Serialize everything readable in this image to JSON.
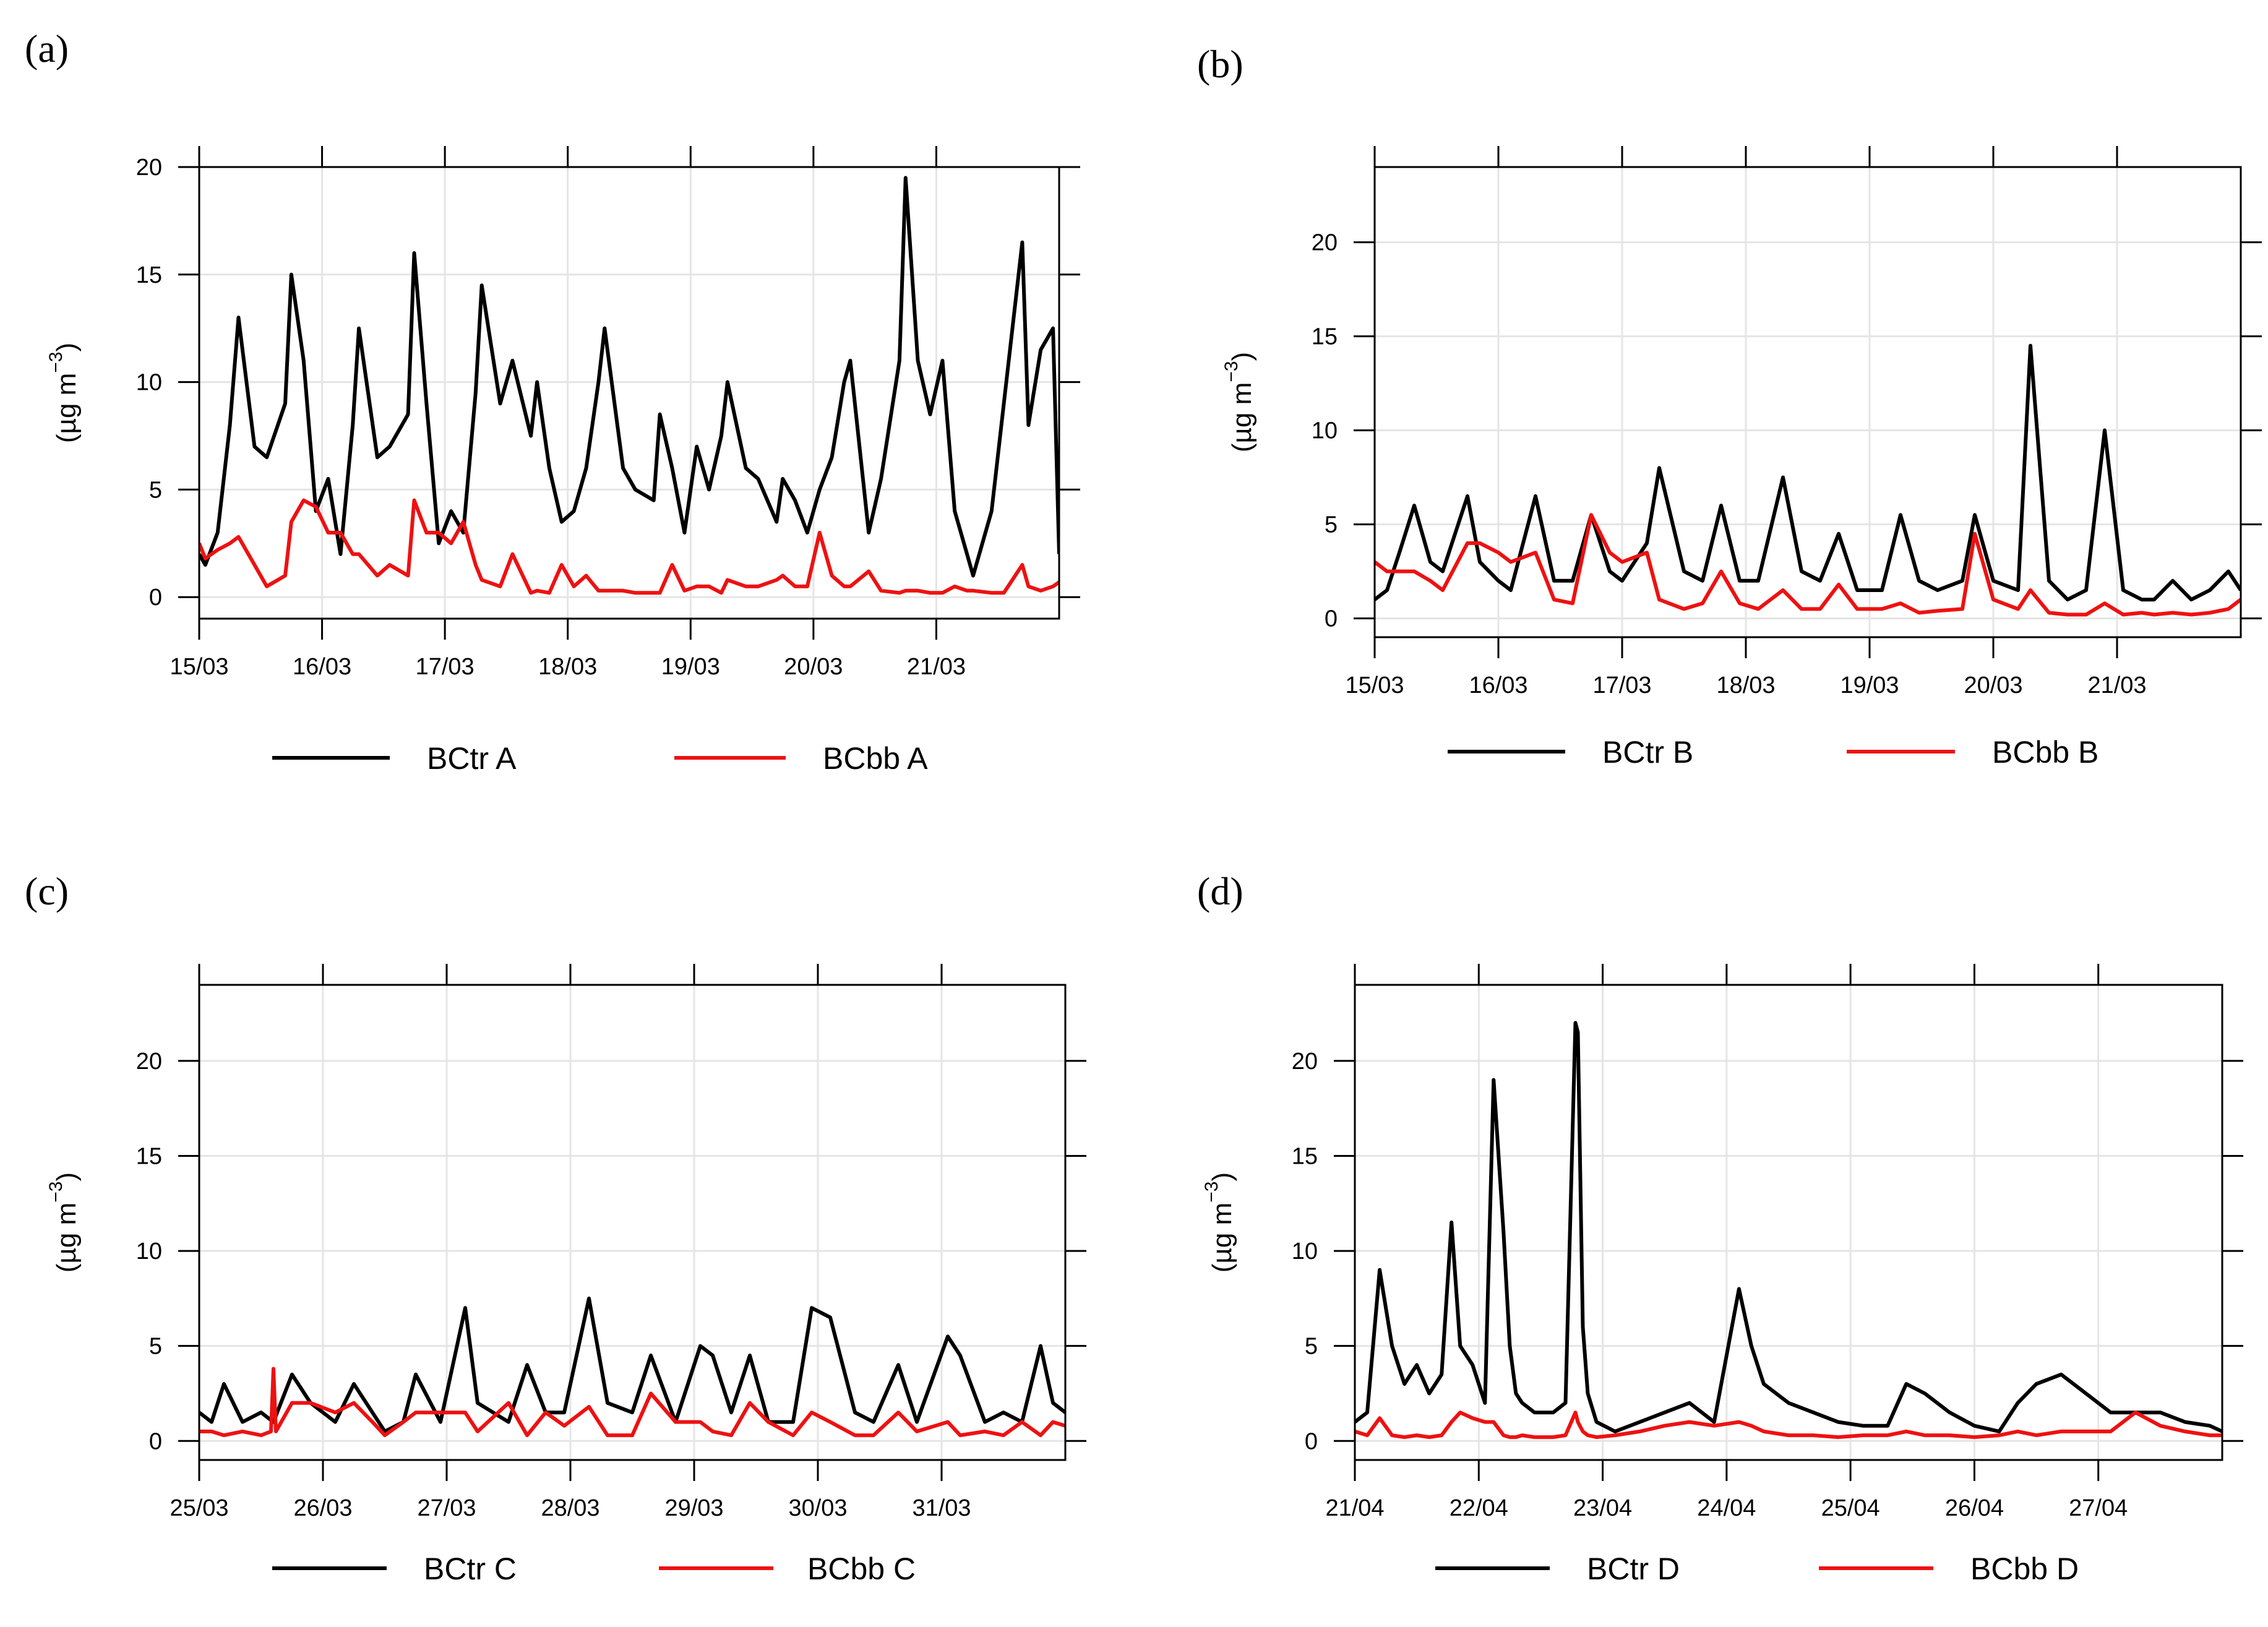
{
  "colors": {
    "bctr": "#000000",
    "bcbb": "#ee1111",
    "grid": "#e5e5e5",
    "frame": "#000000"
  },
  "chart_data": [
    {
      "panel_label": "(a)",
      "type": "line",
      "ylabel": "(µg m",
      "ylabel_sup": "−3",
      "ylabel_close": ")",
      "ylim": [
        -1,
        20
      ],
      "yticks": [
        "0",
        "5",
        "10",
        "15",
        "20"
      ],
      "xlim": [
        0,
        7
      ],
      "x_tick_labels": [
        "15/03",
        "16/03",
        "17/03",
        "18/03",
        "19/03",
        "20/03",
        "21/03"
      ],
      "series": [
        {
          "name": "BCtr A",
          "x": [
            0,
            0.05,
            0.15,
            0.25,
            0.32,
            0.45,
            0.55,
            0.7,
            0.75,
            0.85,
            0.95,
            1.05,
            1.15,
            1.25,
            1.3,
            1.45,
            1.55,
            1.7,
            1.75,
            1.85,
            1.95,
            2.05,
            2.15,
            2.25,
            2.3,
            2.45,
            2.55,
            2.7,
            2.75,
            2.85,
            2.95,
            3.05,
            3.15,
            3.25,
            3.3,
            3.45,
            3.55,
            3.7,
            3.75,
            3.85,
            3.95,
            4.05,
            4.15,
            4.25,
            4.3,
            4.45,
            4.55,
            4.7,
            4.75,
            4.85,
            4.95,
            5.05,
            5.15,
            5.25,
            5.3,
            5.45,
            5.55,
            5.7,
            5.75,
            5.85,
            5.95,
            6.05,
            6.15,
            6.25,
            6.3,
            6.45,
            6.55,
            6.7,
            6.75,
            6.85,
            6.95,
            7.0
          ],
          "values": [
            2.0,
            1.5,
            3.0,
            8.0,
            13.0,
            7.0,
            6.5,
            9.0,
            15.0,
            11.0,
            4.0,
            5.5,
            2.0,
            8.0,
            12.5,
            6.5,
            7.0,
            8.5,
            16.0,
            9.0,
            2.5,
            4.0,
            3.0,
            9.5,
            14.5,
            9.0,
            11.0,
            7.5,
            10.0,
            6.0,
            3.5,
            4.0,
            6.0,
            10.0,
            12.5,
            6.0,
            5.0,
            4.5,
            8.5,
            6.0,
            3.0,
            7.0,
            5.0,
            7.5,
            10.0,
            6.0,
            5.5,
            3.5,
            5.5,
            4.5,
            3.0,
            5.0,
            6.5,
            10.0,
            11.0,
            3.0,
            5.5,
            11.0,
            19.5,
            11.0,
            8.5,
            11.0,
            4.0,
            2.0,
            1.0,
            4.0,
            9.0,
            16.5,
            8.0,
            11.5,
            12.5,
            2.0
          ]
        },
        {
          "name": "BCbb A",
          "x": [
            0,
            0.05,
            0.15,
            0.25,
            0.32,
            0.45,
            0.55,
            0.7,
            0.75,
            0.85,
            0.95,
            1.05,
            1.15,
            1.25,
            1.3,
            1.45,
            1.55,
            1.7,
            1.75,
            1.85,
            1.95,
            2.05,
            2.15,
            2.25,
            2.3,
            2.45,
            2.55,
            2.7,
            2.75,
            2.85,
            2.95,
            3.05,
            3.15,
            3.25,
            3.3,
            3.45,
            3.55,
            3.7,
            3.75,
            3.85,
            3.95,
            4.05,
            4.15,
            4.25,
            4.3,
            4.45,
            4.55,
            4.7,
            4.75,
            4.85,
            4.95,
            5.05,
            5.15,
            5.25,
            5.3,
            5.45,
            5.55,
            5.7,
            5.75,
            5.85,
            5.95,
            6.05,
            6.15,
            6.25,
            6.3,
            6.45,
            6.55,
            6.7,
            6.75,
            6.85,
            6.95,
            7.0
          ],
          "values": [
            2.5,
            1.8,
            2.2,
            2.5,
            2.8,
            1.5,
            0.5,
            1.0,
            3.5,
            4.5,
            4.2,
            3.0,
            3.0,
            2.0,
            2.0,
            1.0,
            1.5,
            1.0,
            4.5,
            3.0,
            3.0,
            2.5,
            3.5,
            1.5,
            0.8,
            0.5,
            2.0,
            0.2,
            0.3,
            0.2,
            1.5,
            0.5,
            1.0,
            0.3,
            0.3,
            0.3,
            0.2,
            0.2,
            0.2,
            1.5,
            0.3,
            0.5,
            0.5,
            0.2,
            0.8,
            0.5,
            0.5,
            0.8,
            1.0,
            0.5,
            0.5,
            3.0,
            1.0,
            0.5,
            0.5,
            1.2,
            0.3,
            0.2,
            0.3,
            0.3,
            0.2,
            0.2,
            0.5,
            0.3,
            0.3,
            0.2,
            0.2,
            1.5,
            0.5,
            0.3,
            0.5,
            0.7
          ]
        }
      ],
      "legend": [
        "BCtr A",
        "BCbb A"
      ]
    },
    {
      "panel_label": "(b)",
      "type": "line",
      "ylabel": "(µg m",
      "ylabel_sup": "−3",
      "ylabel_close": ")",
      "ylim": [
        -1,
        24
      ],
      "yticks": [
        "0",
        "5",
        "10",
        "15",
        "20"
      ],
      "xlim": [
        0,
        7
      ],
      "x_tick_labels": [
        "15/03",
        "16/03",
        "17/03",
        "18/03",
        "19/03",
        "20/03",
        "21/03"
      ],
      "series": [
        {
          "name": "BCtr B",
          "x": [
            0,
            0.1,
            0.2,
            0.32,
            0.45,
            0.55,
            0.75,
            0.85,
            1.0,
            1.1,
            1.3,
            1.45,
            1.6,
            1.75,
            1.9,
            2.0,
            2.2,
            2.3,
            2.5,
            2.65,
            2.8,
            2.95,
            3.1,
            3.3,
            3.45,
            3.6,
            3.75,
            3.9,
            4.1,
            4.25,
            4.4,
            4.55,
            4.75,
            4.85,
            5.0,
            5.2,
            5.3,
            5.45,
            5.6,
            5.75,
            5.9,
            6.05,
            6.2,
            6.3,
            6.45,
            6.6,
            6.75,
            6.9,
            7.0
          ],
          "values": [
            1.0,
            1.5,
            3.5,
            6.0,
            3.0,
            2.5,
            6.5,
            3.0,
            2.0,
            1.5,
            6.5,
            2.0,
            2.0,
            5.5,
            2.5,
            2.0,
            4.0,
            8.0,
            2.5,
            2.0,
            6.0,
            2.0,
            2.0,
            7.5,
            2.5,
            2.0,
            4.5,
            1.5,
            1.5,
            5.5,
            2.0,
            1.5,
            2.0,
            5.5,
            2.0,
            1.5,
            14.5,
            2.0,
            1.0,
            1.5,
            10.0,
            1.5,
            1.0,
            1.0,
            2.0,
            1.0,
            1.5,
            2.5,
            1.5
          ]
        },
        {
          "name": "BCbb B",
          "x": [
            0,
            0.1,
            0.2,
            0.32,
            0.45,
            0.55,
            0.75,
            0.85,
            1.0,
            1.1,
            1.3,
            1.45,
            1.6,
            1.75,
            1.9,
            2.0,
            2.2,
            2.3,
            2.5,
            2.65,
            2.8,
            2.95,
            3.1,
            3.3,
            3.45,
            3.6,
            3.75,
            3.9,
            4.1,
            4.25,
            4.4,
            4.55,
            4.75,
            4.85,
            5.0,
            5.2,
            5.3,
            5.45,
            5.6,
            5.75,
            5.9,
            6.05,
            6.2,
            6.3,
            6.45,
            6.6,
            6.75,
            6.9,
            7.0
          ],
          "values": [
            3.0,
            2.5,
            2.5,
            2.5,
            2.0,
            1.5,
            4.0,
            4.0,
            3.5,
            3.0,
            3.5,
            1.0,
            0.8,
            5.5,
            3.5,
            3.0,
            3.5,
            1.0,
            0.5,
            0.8,
            2.5,
            0.8,
            0.5,
            1.5,
            0.5,
            0.5,
            1.8,
            0.5,
            0.5,
            0.8,
            0.3,
            0.4,
            0.5,
            4.5,
            1.0,
            0.5,
            1.5,
            0.3,
            0.2,
            0.2,
            0.8,
            0.2,
            0.3,
            0.2,
            0.3,
            0.2,
            0.3,
            0.5,
            1.0
          ]
        }
      ],
      "legend": [
        "BCtr B",
        "BCbb B"
      ]
    },
    {
      "panel_label": "(c)",
      "type": "line",
      "ylabel": "(µg m",
      "ylabel_sup": "−3",
      "ylabel_close": ")",
      "ylim": [
        -1,
        24
      ],
      "yticks": [
        "0",
        "5",
        "10",
        "15",
        "20"
      ],
      "xlim": [
        0,
        7
      ],
      "x_tick_labels": [
        "25/03",
        "26/03",
        "27/03",
        "28/03",
        "29/03",
        "30/03",
        "31/03"
      ],
      "series": [
        {
          "name": "BCtr C",
          "x": [
            0,
            0.1,
            0.2,
            0.35,
            0.5,
            0.6,
            0.75,
            0.9,
            1.1,
            1.25,
            1.4,
            1.5,
            1.65,
            1.75,
            1.95,
            2.15,
            2.25,
            2.5,
            2.65,
            2.8,
            2.95,
            3.15,
            3.3,
            3.5,
            3.65,
            3.85,
            4.05,
            4.15,
            4.3,
            4.45,
            4.6,
            4.8,
            4.95,
            5.1,
            5.3,
            5.45,
            5.65,
            5.8,
            6.05,
            6.15,
            6.35,
            6.5,
            6.65,
            6.8,
            6.9,
            7.0
          ],
          "values": [
            1.5,
            1.0,
            3.0,
            1.0,
            1.5,
            1.0,
            3.5,
            2.0,
            1.0,
            3.0,
            1.5,
            0.5,
            1.0,
            3.5,
            1.0,
            7.0,
            2.0,
            1.0,
            4.0,
            1.5,
            1.5,
            7.5,
            2.0,
            1.5,
            4.5,
            1.0,
            5.0,
            4.5,
            1.5,
            4.5,
            1.0,
            1.0,
            7.0,
            6.5,
            1.5,
            1.0,
            4.0,
            1.0,
            5.5,
            4.5,
            1.0,
            1.5,
            1.0,
            5.0,
            2.0,
            1.5
          ]
        },
        {
          "name": "BCbb C",
          "x": [
            0,
            0.1,
            0.2,
            0.35,
            0.5,
            0.58,
            0.6,
            0.62,
            0.75,
            0.9,
            1.1,
            1.25,
            1.4,
            1.5,
            1.65,
            1.75,
            1.95,
            2.15,
            2.25,
            2.5,
            2.65,
            2.8,
            2.95,
            3.15,
            3.3,
            3.5,
            3.65,
            3.85,
            4.05,
            4.15,
            4.3,
            4.45,
            4.6,
            4.8,
            4.95,
            5.1,
            5.3,
            5.45,
            5.65,
            5.8,
            6.05,
            6.15,
            6.35,
            6.5,
            6.65,
            6.8,
            6.9,
            7.0
          ],
          "values": [
            0.5,
            0.5,
            0.3,
            0.5,
            0.3,
            0.5,
            3.8,
            0.5,
            2.0,
            2.0,
            1.5,
            2.0,
            1.0,
            0.3,
            1.0,
            1.5,
            1.5,
            1.5,
            0.5,
            2.0,
            0.3,
            1.5,
            0.8,
            1.8,
            0.3,
            0.3,
            2.5,
            1.0,
            1.0,
            0.5,
            0.3,
            2.0,
            1.0,
            0.3,
            1.5,
            1.0,
            0.3,
            0.3,
            1.5,
            0.5,
            1.0,
            0.3,
            0.5,
            0.3,
            1.0,
            0.3,
            1.0,
            0.8
          ]
        }
      ],
      "legend": [
        "BCtr C",
        "BCbb C"
      ]
    },
    {
      "panel_label": "(d)",
      "type": "line",
      "ylabel": "(µg m",
      "ylabel_sup": "−3",
      "ylabel_close": ")",
      "ylim": [
        -1,
        24
      ],
      "yticks": [
        "0",
        "5",
        "10",
        "15",
        "20"
      ],
      "xlim": [
        0,
        7
      ],
      "x_tick_labels": [
        "21/04",
        "22/04",
        "23/04",
        "24/04",
        "25/04",
        "26/04",
        "27/04"
      ],
      "series": [
        {
          "name": "BCtr D",
          "x": [
            0,
            0.1,
            0.2,
            0.3,
            0.4,
            0.5,
            0.6,
            0.7,
            0.78,
            0.85,
            0.95,
            1.05,
            1.12,
            1.2,
            1.25,
            1.3,
            1.35,
            1.45,
            1.6,
            1.7,
            1.78,
            1.8,
            1.84,
            1.88,
            1.95,
            2.1,
            2.3,
            2.5,
            2.7,
            2.9,
            3.1,
            3.2,
            3.3,
            3.5,
            3.7,
            3.9,
            4.1,
            4.3,
            4.45,
            4.6,
            4.8,
            5.0,
            5.2,
            5.35,
            5.5,
            5.7,
            5.9,
            6.1,
            6.3,
            6.5,
            6.7,
            6.9,
            7.0
          ],
          "values": [
            1.0,
            1.5,
            9.0,
            5.0,
            3.0,
            4.0,
            2.5,
            3.5,
            11.5,
            5.0,
            4.0,
            2.0,
            19.0,
            11.0,
            5.0,
            2.5,
            2.0,
            1.5,
            1.5,
            2.0,
            22.0,
            21.5,
            6.0,
            2.5,
            1.0,
            0.5,
            1.0,
            1.5,
            2.0,
            1.0,
            8.0,
            5.0,
            3.0,
            2.0,
            1.5,
            1.0,
            0.8,
            0.8,
            3.0,
            2.5,
            1.5,
            0.8,
            0.5,
            2.0,
            3.0,
            3.5,
            2.5,
            1.5,
            1.5,
            1.5,
            1.0,
            0.8,
            0.5
          ]
        },
        {
          "name": "BCbb D",
          "x": [
            0,
            0.1,
            0.2,
            0.3,
            0.4,
            0.5,
            0.6,
            0.7,
            0.78,
            0.85,
            0.95,
            1.05,
            1.12,
            1.2,
            1.25,
            1.3,
            1.35,
            1.45,
            1.6,
            1.7,
            1.78,
            1.8,
            1.84,
            1.88,
            1.95,
            2.1,
            2.3,
            2.5,
            2.7,
            2.9,
            3.1,
            3.2,
            3.3,
            3.5,
            3.7,
            3.9,
            4.1,
            4.3,
            4.45,
            4.6,
            4.8,
            5.0,
            5.2,
            5.35,
            5.5,
            5.7,
            5.9,
            6.1,
            6.3,
            6.5,
            6.7,
            6.9,
            7.0
          ],
          "values": [
            0.5,
            0.3,
            1.2,
            0.3,
            0.2,
            0.3,
            0.2,
            0.3,
            1.0,
            1.5,
            1.2,
            1.0,
            1.0,
            0.3,
            0.2,
            0.2,
            0.3,
            0.2,
            0.2,
            0.3,
            1.5,
            1.0,
            0.5,
            0.3,
            0.2,
            0.3,
            0.5,
            0.8,
            1.0,
            0.8,
            1.0,
            0.8,
            0.5,
            0.3,
            0.3,
            0.2,
            0.3,
            0.3,
            0.5,
            0.3,
            0.3,
            0.2,
            0.3,
            0.5,
            0.3,
            0.5,
            0.5,
            0.5,
            1.5,
            0.8,
            0.5,
            0.3,
            0.3
          ]
        }
      ],
      "legend": [
        "BCtr D",
        "BCbb D"
      ]
    }
  ]
}
